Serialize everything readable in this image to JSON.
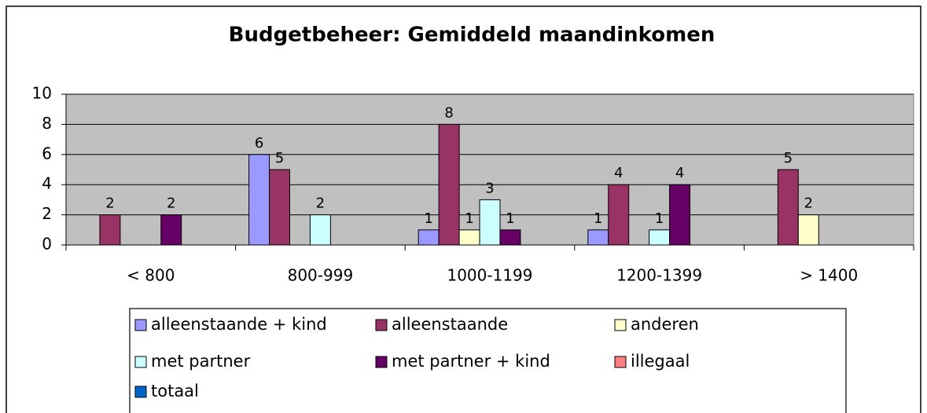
{
  "chart_data": {
    "type": "bar",
    "title": "Budgetbeheer: Gemiddeld maandinkomen",
    "categories": [
      "< 800",
      "800-999",
      "1000-1199",
      "1200-1399",
      "> 1400"
    ],
    "series": [
      {
        "name": "alleenstaande + kind",
        "color": "#9999ff",
        "values": [
          0,
          6,
          1,
          1,
          0
        ]
      },
      {
        "name": "alleenstaande",
        "color": "#993366",
        "values": [
          2,
          5,
          8,
          4,
          5
        ]
      },
      {
        "name": "anderen",
        "color": "#ffffcc",
        "values": [
          0,
          0,
          1,
          0,
          2
        ]
      },
      {
        "name": "met partner",
        "color": "#ccffff",
        "values": [
          0,
          2,
          3,
          1,
          0
        ]
      },
      {
        "name": "met partner + kind",
        "color": "#660066",
        "values": [
          2,
          0,
          1,
          4,
          0
        ]
      },
      {
        "name": "illegaal",
        "color": "#ff8080",
        "values": [
          0,
          0,
          0,
          0,
          0
        ]
      },
      {
        "name": "totaal",
        "color": "#0066cc",
        "values": [
          0,
          0,
          0,
          0,
          0
        ]
      }
    ],
    "ylim": [
      0,
      10
    ],
    "yticks": [
      0,
      2,
      4,
      6,
      8,
      10
    ],
    "grid": true,
    "plot_background": "#c0c0c0"
  }
}
